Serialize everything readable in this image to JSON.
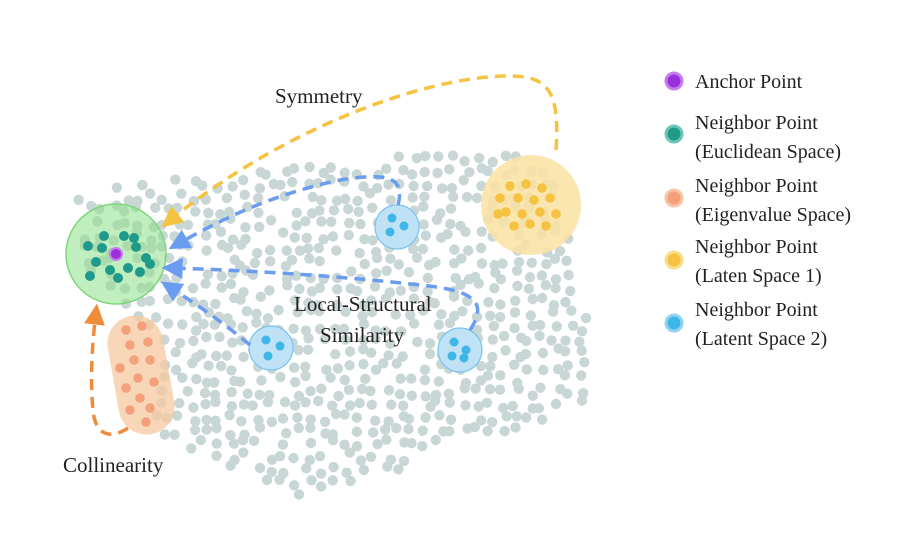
{
  "annotations": {
    "symmetry": "Symmetry",
    "local_structural_line1": "Local-Structural",
    "local_structural_line2": "Similarity",
    "collinearity": "Collinearity"
  },
  "legend": [
    {
      "name": "legend-anchor-point",
      "lines": [
        "Anchor Point"
      ],
      "color": "#9b30d9"
    },
    {
      "name": "legend-neighbor-euclidean",
      "lines": [
        "Neighbor Point",
        "(Euclidean Space)"
      ],
      "color": "#1f9a8a"
    },
    {
      "name": "legend-neighbor-eigenvalue",
      "lines": [
        "Neighbor Point",
        "(Eigenvalue Space)"
      ],
      "color": "#f4a07a"
    },
    {
      "name": "legend-neighbor-latent1",
      "lines": [
        "Neighbor Point",
        "(Laten Space 1)"
      ],
      "color": "#f5c242"
    },
    {
      "name": "legend-neighbor-latent2",
      "lines": [
        "Neighbor Point",
        "(Latent Space 2)"
      ],
      "color": "#3fb6e8"
    }
  ],
  "colors": {
    "background_points": "#c9d6d6",
    "euclidean_region": "#8ee08a",
    "eigenvalue_region": "#f6c9a0",
    "latent1_region": "#fbe2a2",
    "latent2_region": "#bfe2f6",
    "arrow_symmetry": "#f5c242",
    "arrow_local": "#6a9cf0",
    "arrow_collinearity": "#ee8c3c"
  }
}
